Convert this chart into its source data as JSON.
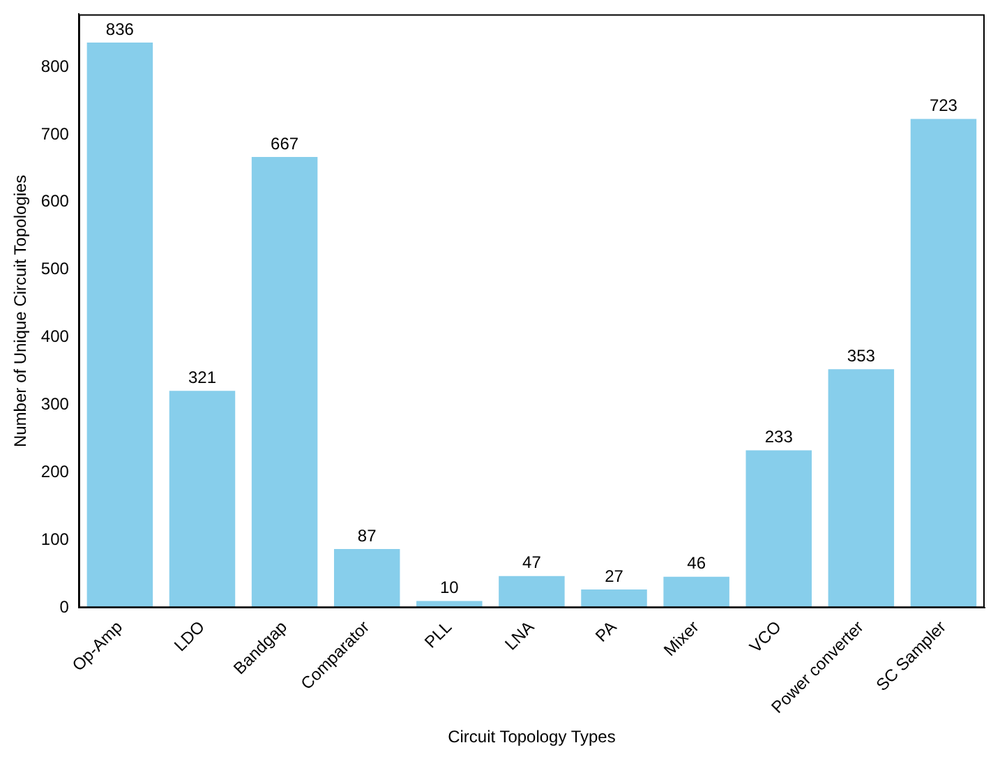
{
  "chart_data": {
    "type": "bar",
    "xlabel": "Circuit Topology Types",
    "ylabel": "Number of Unique Circuit Topologies",
    "categories": [
      "Op-Amp",
      "LDO",
      "Bandgap",
      "Comparator",
      "PLL",
      "LNA",
      "PA",
      "Mixer",
      "VCO",
      "Power converter",
      "SC Sampler"
    ],
    "values": [
      836,
      321,
      667,
      87,
      10,
      47,
      27,
      46,
      233,
      353,
      723
    ],
    "color": "#87ceeb",
    "ylim": [
      0,
      878
    ],
    "yticks": [
      0,
      100,
      200,
      300,
      400,
      500,
      600,
      700,
      800
    ],
    "grid": false,
    "legend": false,
    "data_labels": true
  }
}
